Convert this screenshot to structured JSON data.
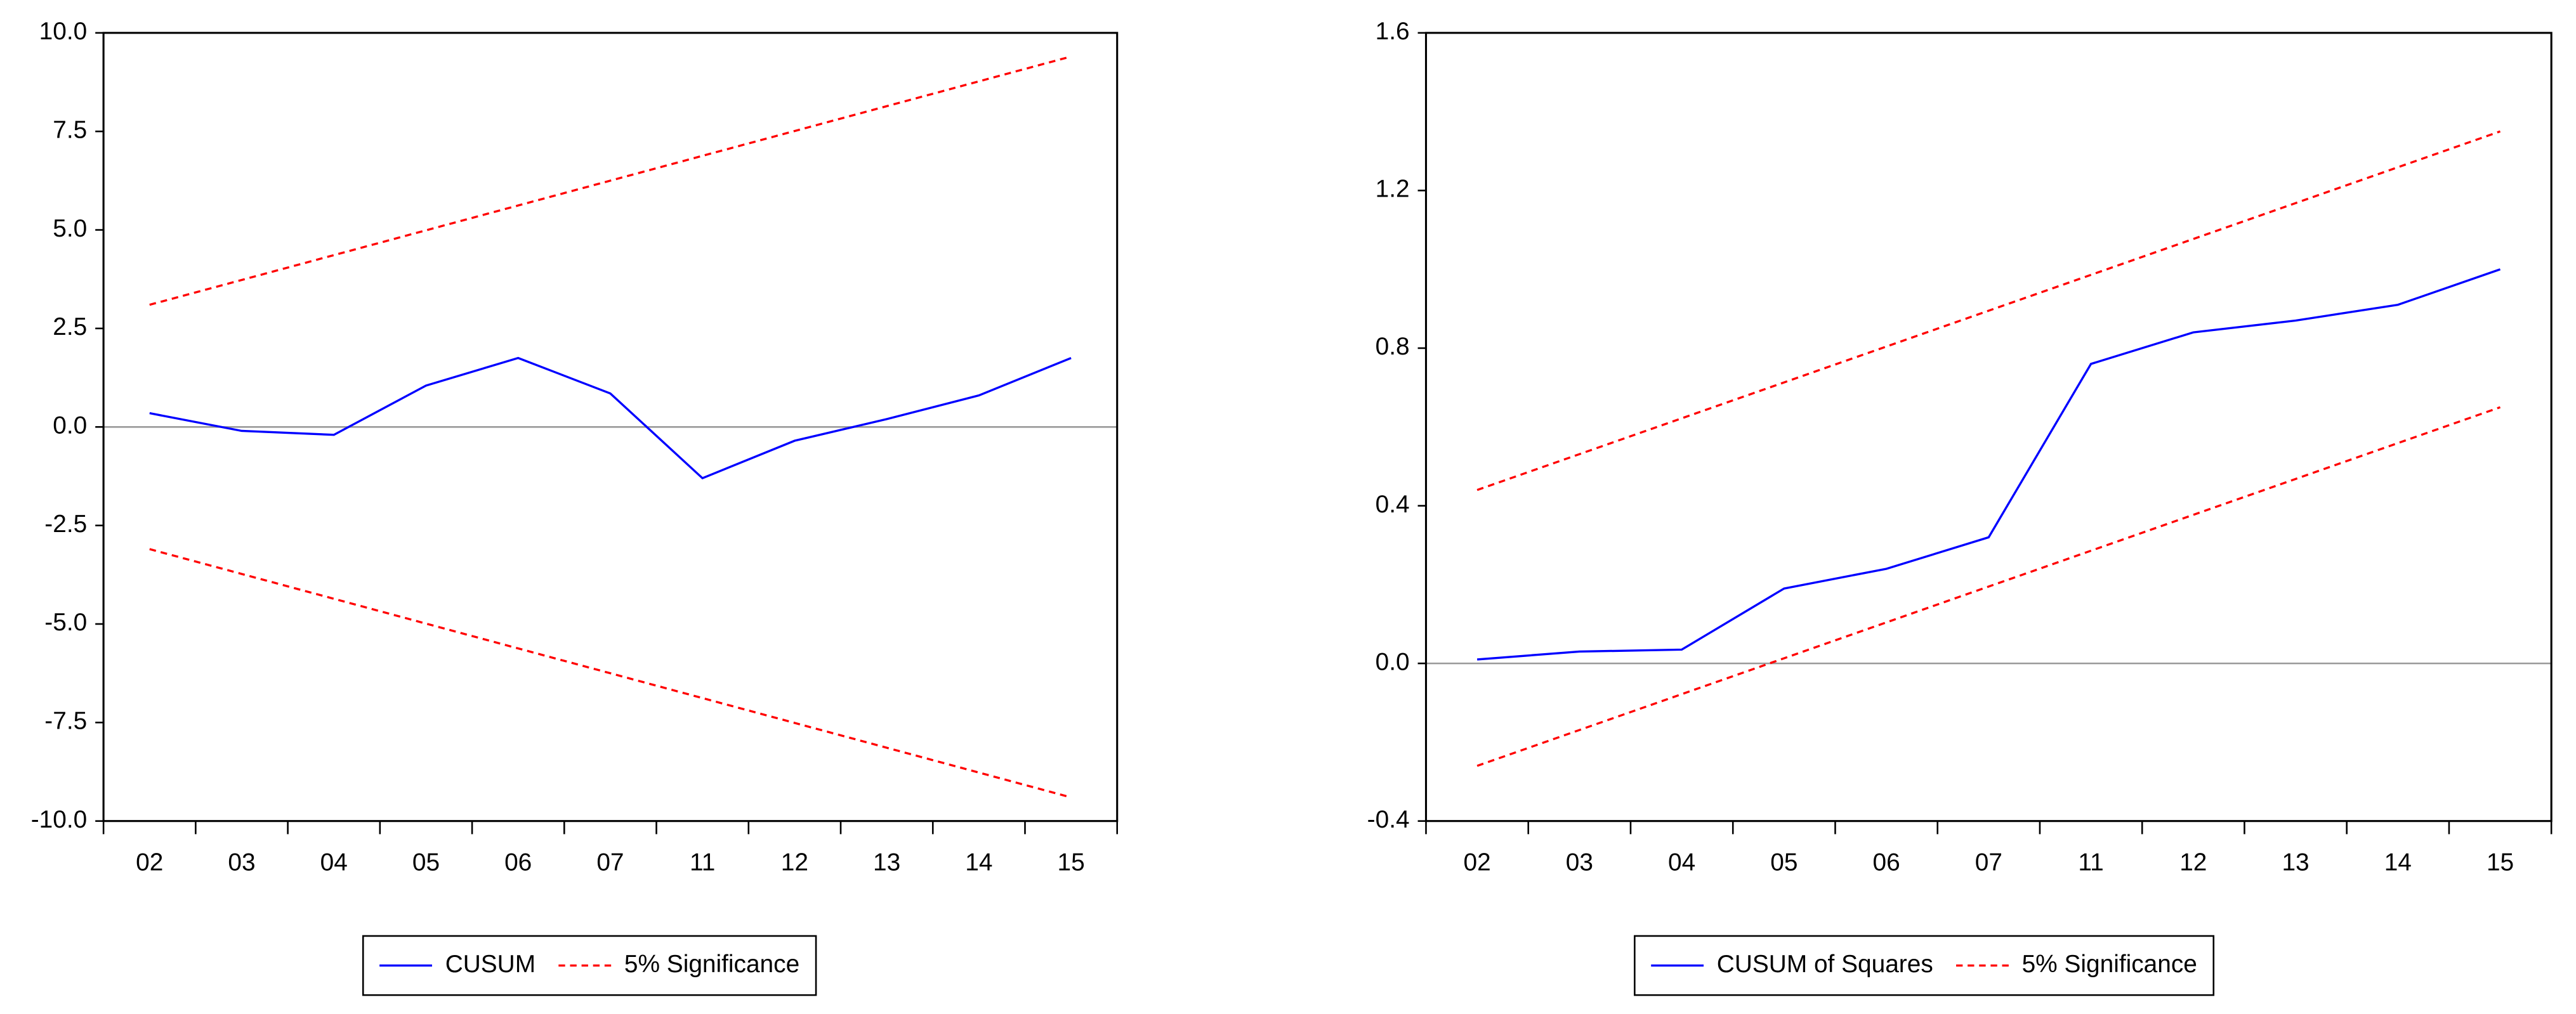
{
  "chart_data": [
    {
      "type": "line",
      "categories": [
        "02",
        "03",
        "04",
        "05",
        "06",
        "07",
        "11",
        "12",
        "13",
        "14",
        "15"
      ],
      "series": [
        {
          "name": "CUSUM",
          "color": "#0000ff",
          "dashed": false,
          "values": [
            0.35,
            -0.1,
            -0.2,
            1.05,
            1.75,
            0.85,
            -1.3,
            -0.35,
            0.2,
            0.8,
            1.75
          ]
        },
        {
          "name": "5% Significance",
          "color": "#ff0000",
          "dashed": true,
          "values": [
            3.1,
            3.73,
            4.36,
            4.99,
            5.62,
            6.25,
            6.88,
            7.51,
            8.14,
            8.77,
            9.4
          ],
          "lower_values": [
            -3.1,
            -3.73,
            -4.36,
            -4.99,
            -5.62,
            -6.25,
            -6.88,
            -7.51,
            -8.14,
            -8.77,
            -9.4
          ]
        }
      ],
      "ylim": [
        -10,
        10
      ],
      "yticks": [
        {
          "value": 10,
          "label": "10.0"
        },
        {
          "value": 7.5,
          "label": "7.5"
        },
        {
          "value": 5,
          "label": "5.0"
        },
        {
          "value": 2.5,
          "label": "2.5"
        },
        {
          "value": 0,
          "label": "0.0"
        },
        {
          "value": -2.5,
          "label": "-2.5"
        },
        {
          "value": -5,
          "label": "-5.0"
        },
        {
          "value": -7.5,
          "label": "-7.5"
        },
        {
          "value": -10,
          "label": "-10.0"
        }
      ],
      "zero_line": true,
      "legend": "bottom"
    },
    {
      "type": "line",
      "categories": [
        "02",
        "03",
        "04",
        "05",
        "06",
        "07",
        "11",
        "12",
        "13",
        "14",
        "15"
      ],
      "series": [
        {
          "name": "CUSUM of Squares",
          "color": "#0000ff",
          "dashed": false,
          "values": [
            0.01,
            0.03,
            0.035,
            0.19,
            0.24,
            0.32,
            0.76,
            0.84,
            0.87,
            0.91,
            1.0
          ]
        },
        {
          "name": "5% Significance",
          "color": "#ff0000",
          "dashed": true,
          "values": [
            0.44,
            0.531,
            0.622,
            0.713,
            0.804,
            0.895,
            0.986,
            1.077,
            1.168,
            1.259,
            1.35
          ],
          "lower_values": [
            -0.26,
            -0.169,
            -0.078,
            0.013,
            0.104,
            0.195,
            0.286,
            0.377,
            0.468,
            0.559,
            0.65
          ]
        }
      ],
      "ylim": [
        -0.4,
        1.6
      ],
      "yticks": [
        1.6,
        1.2,
        0.8,
        0.4,
        {
          "value": 0,
          "label": "0.0"
        },
        -0.4
      ],
      "zero_line": true,
      "legend": "bottom"
    }
  ]
}
